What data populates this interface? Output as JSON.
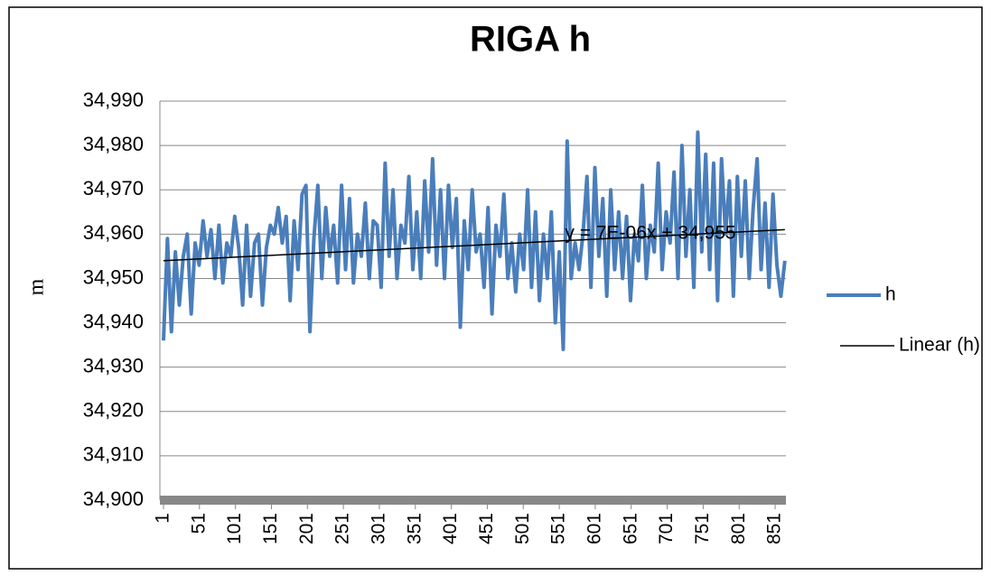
{
  "chart_data": {
    "type": "line",
    "title": "RIGA h",
    "y_label": "m",
    "annotation": "y = 7E-06x + 34,955",
    "xlim": [
      -4,
      866
    ],
    "xticks": [
      1,
      51,
      101,
      151,
      201,
      251,
      301,
      351,
      401,
      451,
      501,
      551,
      601,
      651,
      701,
      751,
      801,
      851
    ],
    "ylim": [
      34.9,
      34.99
    ],
    "yticks": [
      {
        "value": 34.9,
        "label": "34,900"
      },
      {
        "value": 34.91,
        "label": "34,910"
      },
      {
        "value": 34.92,
        "label": "34,920"
      },
      {
        "value": 34.93,
        "label": "34,930"
      },
      {
        "value": 34.94,
        "label": "34,940"
      },
      {
        "value": 34.95,
        "label": "34,950"
      },
      {
        "value": 34.96,
        "label": "34,960"
      },
      {
        "value": 34.97,
        "label": "34,970"
      },
      {
        "value": 34.98,
        "label": "34,980"
      },
      {
        "value": 34.99,
        "label": "34,990"
      }
    ],
    "grid": true,
    "legend": "right",
    "series": [
      {
        "name": "h",
        "color": "#4a7ebb",
        "x": [
          1,
          6.5,
          12,
          17.5,
          23,
          28.5,
          34,
          39.5,
          45,
          50.5,
          56,
          61.5,
          67,
          72.5,
          78,
          83.5,
          89,
          94.5,
          100,
          105.5,
          111,
          116.5,
          122,
          127.5,
          133,
          138.5,
          144,
          149.5,
          155,
          160.5,
          166,
          171.5,
          177,
          182.5,
          188,
          193.5,
          199,
          204.5,
          210,
          215.5,
          221,
          226.5,
          232,
          237.5,
          243,
          248.5,
          254,
          259.5,
          265,
          270.5,
          276,
          281.5,
          287,
          292.5,
          298,
          303.5,
          309,
          314.5,
          320,
          325.5,
          331,
          336.5,
          342,
          347.5,
          353,
          358.5,
          364,
          369.5,
          375,
          380.5,
          386,
          391.5,
          397,
          402.5,
          408,
          413.5,
          419,
          424.5,
          430,
          435.5,
          441,
          446.5,
          452,
          457.5,
          463,
          468.5,
          474,
          479.5,
          485,
          490.5,
          496,
          501.5,
          507,
          512.5,
          518,
          523.5,
          529,
          534.5,
          540,
          545.5,
          551,
          556.5,
          562,
          567.5,
          573,
          578.5,
          584,
          589.5,
          595,
          600.5,
          606,
          611.5,
          617,
          622.5,
          628,
          633.5,
          639,
          644.5,
          650,
          655.5,
          661,
          666.5,
          672,
          677.5,
          683,
          688.5,
          694,
          699.5,
          705,
          710.5,
          716,
          721.5,
          727,
          732.5,
          738,
          743.5,
          749,
          754.5,
          760,
          765.5,
          771,
          776.5,
          782,
          787.5,
          793,
          798.5,
          804,
          809.5,
          815,
          820.5,
          826,
          831.5,
          837,
          842.5,
          848,
          853.5,
          859,
          864.5
        ],
        "values": [
          34.936,
          34.959,
          34.938,
          34.956,
          34.944,
          34.955,
          34.96,
          34.942,
          34.958,
          34.953,
          34.963,
          34.955,
          34.961,
          34.95,
          34.962,
          34.949,
          34.958,
          34.955,
          34.964,
          34.957,
          34.944,
          34.962,
          34.946,
          34.958,
          34.96,
          34.944,
          34.957,
          34.962,
          34.96,
          34.966,
          34.958,
          34.964,
          34.945,
          34.963,
          34.952,
          34.969,
          34.971,
          34.938,
          34.959,
          34.971,
          34.95,
          34.966,
          34.955,
          34.962,
          34.949,
          34.971,
          34.952,
          34.968,
          34.949,
          34.96,
          34.955,
          34.967,
          34.95,
          34.963,
          34.962,
          34.948,
          34.976,
          34.955,
          34.97,
          34.95,
          34.962,
          34.958,
          34.973,
          34.952,
          34.965,
          34.95,
          34.972,
          34.956,
          34.977,
          34.953,
          34.97,
          34.95,
          34.971,
          34.957,
          34.968,
          34.939,
          34.963,
          34.952,
          34.97,
          34.956,
          34.96,
          34.948,
          34.966,
          34.942,
          34.962,
          34.955,
          34.969,
          34.95,
          34.958,
          34.947,
          34.96,
          34.952,
          34.97,
          34.948,
          34.965,
          34.945,
          34.96,
          34.95,
          34.965,
          34.94,
          34.956,
          34.934,
          34.981,
          34.95,
          34.958,
          34.952,
          34.96,
          34.973,
          34.948,
          34.975,
          34.955,
          34.968,
          34.946,
          34.97,
          34.952,
          34.965,
          34.95,
          34.964,
          34.945,
          34.96,
          34.954,
          34.971,
          34.95,
          34.962,
          34.956,
          34.976,
          34.952,
          34.965,
          34.958,
          34.974,
          34.95,
          34.98,
          34.955,
          34.97,
          34.948,
          34.983,
          34.956,
          34.978,
          34.952,
          34.976,
          34.945,
          34.977,
          34.96,
          34.972,
          34.946,
          34.973,
          34.955,
          34.972,
          34.95,
          34.966,
          34.977,
          34.952,
          34.967,
          34.948,
          34.969,
          34.953,
          34.946,
          34.954
        ]
      },
      {
        "name": "Linear (h)",
        "color": "#000000",
        "x": [
          1,
          864.5
        ],
        "values": [
          34.954,
          34.961
        ]
      }
    ]
  }
}
